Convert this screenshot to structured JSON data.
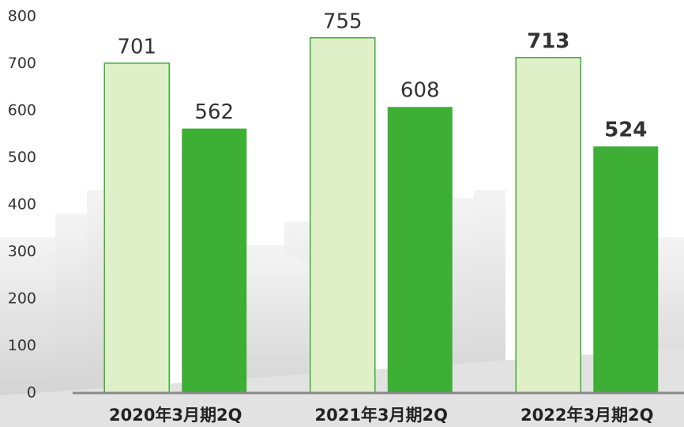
{
  "chart_data": {
    "type": "bar",
    "categories": [
      "2020年3月期2Q",
      "2021年3月期2Q",
      "2022年3月期2Q"
    ],
    "series": [
      {
        "color": "#dff0c8",
        "values": [
          701,
          755,
          713
        ]
      },
      {
        "color": "#3daf35",
        "values": [
          562,
          608,
          524
        ]
      }
    ],
    "ylim": [
      0,
      800
    ],
    "yticks": [
      0,
      100,
      200,
      300,
      400,
      500,
      600,
      700,
      800
    ]
  }
}
